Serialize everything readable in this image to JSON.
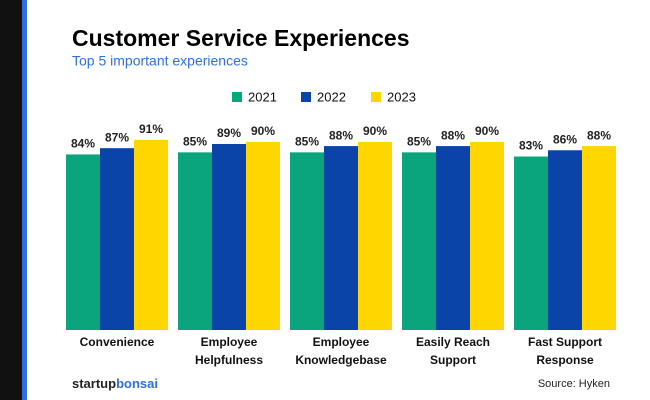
{
  "chart_data": {
    "type": "bar",
    "title": "Customer Service Experiences",
    "subtitle": "Top 5 important experiences",
    "categories": [
      "Convenience",
      "Employee\nHelpfulness",
      "Employee\nKnowledgebase",
      "Easily Reach\nSupport",
      "Fast Support\nResponse"
    ],
    "series": [
      {
        "name": "2021",
        "color": "#0ba57d",
        "values": [
          84,
          85,
          85,
          85,
          83
        ],
        "value_labels": [
          "84%",
          "85%",
          "85%",
          "85%",
          "83%"
        ]
      },
      {
        "name": "2022",
        "color": "#0a44a8",
        "values": [
          87,
          89,
          88,
          88,
          86
        ],
        "value_labels": [
          "87%",
          "89%",
          "88%",
          "88%",
          "86%"
        ]
      },
      {
        "name": "2023",
        "color": "#ffd600",
        "values": [
          91,
          90,
          90,
          90,
          88
        ],
        "value_labels": [
          "91%",
          "90%",
          "90%",
          "90%",
          "88%"
        ]
      }
    ],
    "legend": "top",
    "brand": [
      "startup",
      "bonsai"
    ],
    "source": "Source: Hyken"
  }
}
